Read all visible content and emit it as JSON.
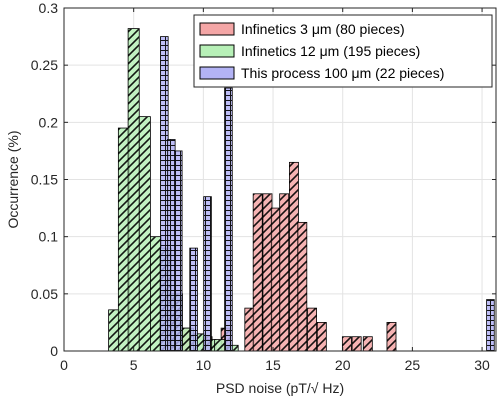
{
  "chart_data": {
    "type": "bar",
    "xlabel": "PSD noise (pT/√ Hz)",
    "ylabel": "Occurrence (%)",
    "xlim": [
      0,
      31
    ],
    "ylim": [
      0,
      0.3
    ],
    "xticks": [
      0,
      5,
      10,
      15,
      20,
      25,
      30
    ],
    "yticks": [
      0,
      0.05,
      0.1,
      0.15,
      0.2,
      0.25,
      0.3
    ],
    "xtick_labels": [
      "0",
      "5",
      "10",
      "15",
      "20",
      "25",
      "30"
    ],
    "ytick_labels": [
      "0",
      "0.05",
      "0.1",
      "0.15",
      "0.2",
      "0.25",
      "0.3"
    ],
    "grid": true,
    "legend_position": "top-right",
    "series": [
      {
        "name": "Infinetics 3 μm (80 pieces)",
        "color": "#F4A6A6",
        "bin_width": 0.65,
        "x": [
          7.3,
          8.8,
          10.3,
          11.6,
          13.3,
          13.9,
          14.6,
          15.2,
          15.8,
          16.5,
          17.1,
          17.8,
          18.5,
          20.3,
          21.0,
          21.8,
          23.5
        ],
        "values": [
          0.075,
          0.02,
          0.0125,
          0.02,
          0.0375,
          0.1375,
          0.1375,
          0.125,
          0.1375,
          0.165,
          0.1125,
          0.0375,
          0.025,
          0.0125,
          0.0125,
          0.0125,
          0.025
        ]
      },
      {
        "name": "Infinetics 12 μm (195 pieces)",
        "color": "#B7F0B7",
        "bin_width": 0.8,
        "x": [
          3.6,
          4.3,
          5.0,
          5.8,
          6.6,
          7.3,
          8.1,
          8.9,
          9.7,
          10.5,
          11.2,
          12.1
        ],
        "values": [
          0.036,
          0.195,
          0.282,
          0.205,
          0.1,
          0.09,
          0.05,
          0.02,
          0.015,
          0.01,
          0.01,
          0.005
        ]
      },
      {
        "name": "This process 100 μm (22 pieces)",
        "color": "#B3B3F5",
        "bin_width": 0.55,
        "x": [
          7.2,
          7.7,
          8.2,
          9.3,
          10.3,
          11.8,
          30.6
        ],
        "values": [
          0.275,
          0.185,
          0.175,
          0.09,
          0.135,
          0.23,
          0.045
        ]
      }
    ]
  }
}
